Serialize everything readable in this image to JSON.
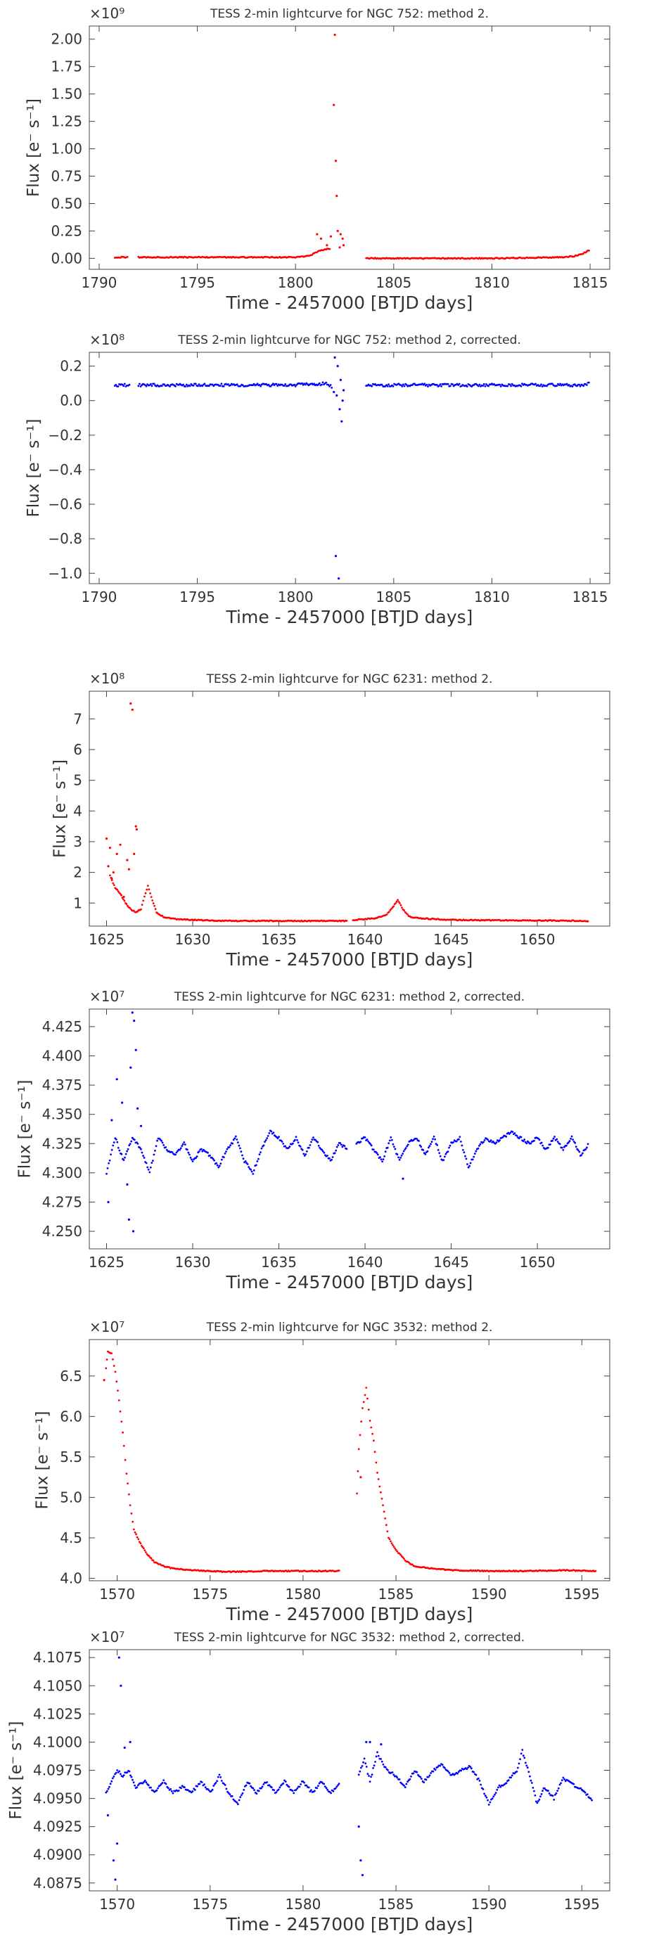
{
  "colors": {
    "red": "#ff0000",
    "blue": "#0000ff",
    "axis": "#444444"
  },
  "chart_data": [
    {
      "type": "scatter",
      "title": "TESS 2-min lightcurve for NGC 752: method 2.",
      "xlabel": "Time - 2457000 [BTJD days]",
      "ylabel": "Flux [e⁻ s⁻¹]",
      "offset_label": "×10⁹",
      "color": "#ff0000",
      "xlim": [
        1789.5,
        1816.0
      ],
      "ylim": [
        -0.1,
        2.12
      ],
      "xticks": [
        1790,
        1795,
        1800,
        1805,
        1810,
        1815
      ],
      "xticklabels": [
        "1790",
        "1795",
        "1800",
        "1805",
        "1810",
        "1815"
      ],
      "yticks": [
        0.0,
        0.25,
        0.5,
        0.75,
        1.0,
        1.25,
        1.5,
        1.75,
        2.0
      ],
      "yticklabels": [
        "0.00",
        "0.25",
        "0.50",
        "0.75",
        "1.00",
        "1.25",
        "1.50",
        "1.75",
        "2.00"
      ],
      "grid": false,
      "segments": [
        {
          "x": [
            1790.8,
            1791.2,
            1791.5
          ],
          "y": [
            0.01,
            0.01,
            0.01
          ]
        },
        {
          "x": [
            1792.0,
            1796.0,
            1800.0,
            1800.6,
            1800.9,
            1801.2,
            1801.5,
            1801.8
          ],
          "y": [
            0.01,
            0.01,
            0.01,
            0.02,
            0.04,
            0.07,
            0.08,
            0.09
          ]
        },
        {
          "x": [
            1803.6,
            1806.0,
            1810.0,
            1813.5,
            1814.2,
            1814.6,
            1815.0
          ],
          "y": [
            0.0,
            0.0,
            0.0,
            0.01,
            0.02,
            0.04,
            0.08
          ]
        }
      ],
      "points": {
        "x": [
          1801.1,
          1801.3,
          1801.6,
          1801.8,
          1801.95,
          1802.0,
          1802.05,
          1802.1,
          1802.15,
          1802.25,
          1802.3,
          1802.4,
          1802.45
        ],
        "y": [
          0.22,
          0.18,
          0.12,
          0.2,
          1.4,
          2.04,
          0.89,
          0.57,
          0.25,
          0.1,
          0.22,
          0.18,
          0.12
        ]
      }
    },
    {
      "type": "scatter",
      "title": "TESS 2-min lightcurve for NGC 752: method 2, corrected.",
      "xlabel": "Time - 2457000 [BTJD days]",
      "ylabel": "Flux [e⁻ s⁻¹]",
      "offset_label": "×10⁸",
      "color": "#0000ff",
      "xlim": [
        1789.5,
        1816.0
      ],
      "ylim": [
        -1.06,
        0.28
      ],
      "xticks": [
        1790,
        1795,
        1800,
        1805,
        1810,
        1815
      ],
      "xticklabels": [
        "1790",
        "1795",
        "1800",
        "1805",
        "1810",
        "1815"
      ],
      "yticks": [
        -1.0,
        -0.8,
        -0.6,
        -0.4,
        -0.2,
        0.0,
        0.2
      ],
      "yticklabels": [
        "−1.0",
        "−0.8",
        "−0.6",
        "−0.4",
        "−0.2",
        "0.0",
        "0.2"
      ],
      "grid": false,
      "segments": [
        {
          "x": [
            1790.8,
            1791.3,
            1791.6
          ],
          "y": [
            0.09,
            0.09,
            0.09
          ]
        },
        {
          "x": [
            1792.0,
            1796.0,
            1800.0,
            1800.5,
            1801.0,
            1801.5,
            1801.9
          ],
          "y": [
            0.09,
            0.09,
            0.09,
            0.1,
            0.09,
            0.1,
            0.08
          ]
        },
        {
          "x": [
            1803.6,
            1808.0,
            1812.0,
            1814.5,
            1815.0
          ],
          "y": [
            0.09,
            0.09,
            0.09,
            0.09,
            0.1
          ]
        }
      ],
      "points": {
        "x": [
          1801.95,
          1802.0,
          1802.05,
          1802.1,
          1802.15,
          1802.2,
          1802.25,
          1802.3,
          1802.35,
          1802.4,
          1802.45
        ],
        "y": [
          0.05,
          0.25,
          -0.9,
          0.03,
          0.2,
          -1.03,
          -0.05,
          0.12,
          -0.12,
          0.0,
          0.06
        ]
      }
    },
    {
      "type": "scatter",
      "title": "TESS 2-min lightcurve for NGC 6231: method 2.",
      "xlabel": "Time - 2457000 [BTJD days]",
      "ylabel": "Flux [e⁻ s⁻¹]",
      "offset_label": "×10⁸",
      "color": "#ff0000",
      "xlim": [
        1624.0,
        1654.2
      ],
      "ylim": [
        0.25,
        7.9
      ],
      "xticks": [
        1625,
        1630,
        1635,
        1640,
        1645,
        1650
      ],
      "xticklabels": [
        "1625",
        "1630",
        "1635",
        "1640",
        "1645",
        "1650"
      ],
      "yticks": [
        1,
        2,
        3,
        4,
        5,
        6,
        7
      ],
      "yticklabels": [
        "1",
        "2",
        "3",
        "4",
        "5",
        "6",
        "7"
      ],
      "grid": false,
      "segments": [
        {
          "x": [
            1625.2,
            1625.5,
            1625.8,
            1626.1,
            1626.4,
            1626.7,
            1627.0,
            1627.2,
            1627.4,
            1627.6,
            1627.9,
            1628.3,
            1629.0,
            1630.0,
            1632.0,
            1635.0,
            1639.0
          ],
          "y": [
            1.9,
            1.5,
            1.3,
            1.0,
            0.8,
            0.7,
            0.8,
            1.2,
            1.55,
            1.2,
            0.7,
            0.55,
            0.48,
            0.45,
            0.42,
            0.42,
            0.42
          ]
        },
        {
          "x": [
            1639.3,
            1640.5,
            1641.2,
            1641.6,
            1641.9,
            1642.2,
            1642.6,
            1643.3,
            1645.0,
            1648.0,
            1653.0
          ],
          "y": [
            0.45,
            0.5,
            0.6,
            0.85,
            1.1,
            0.8,
            0.55,
            0.5,
            0.45,
            0.44,
            0.42
          ]
        }
      ],
      "points": {
        "x": [
          1625.0,
          1625.1,
          1625.2,
          1625.3,
          1625.4,
          1625.6,
          1625.8,
          1626.0,
          1626.2,
          1626.3,
          1626.4,
          1626.5,
          1626.6,
          1626.7,
          1626.75
        ],
        "y": [
          3.1,
          2.2,
          2.8,
          1.8,
          2.0,
          2.6,
          2.9,
          1.2,
          2.4,
          2.1,
          7.5,
          7.3,
          2.6,
          3.5,
          3.4
        ]
      }
    },
    {
      "type": "scatter",
      "title": "TESS 2-min lightcurve for NGC 6231: method 2, corrected.",
      "xlabel": "Time - 2457000 [BTJD days]",
      "ylabel": "Flux [e⁻ s⁻¹]",
      "offset_label": "×10⁷",
      "color": "#0000ff",
      "xlim": [
        1624.0,
        1654.2
      ],
      "ylim": [
        4.235,
        4.44
      ],
      "xticks": [
        1625,
        1630,
        1635,
        1640,
        1645,
        1650
      ],
      "xticklabels": [
        "1625",
        "1630",
        "1635",
        "1640",
        "1645",
        "1650"
      ],
      "yticks": [
        4.25,
        4.275,
        4.3,
        4.325,
        4.35,
        4.375,
        4.4,
        4.425
      ],
      "yticklabels": [
        "4.250",
        "4.275",
        "4.300",
        "4.325",
        "4.350",
        "4.375",
        "4.400",
        "4.425"
      ],
      "grid": false,
      "segments": [
        {
          "x": [
            1625.0,
            1625.5,
            1626.0,
            1626.5,
            1627.0,
            1627.5,
            1628.0,
            1628.5,
            1629.0,
            1629.5,
            1630.0,
            1630.5,
            1631.0,
            1631.5,
            1632.0,
            1632.5,
            1633.0,
            1633.5,
            1634.0,
            1634.5,
            1635.0,
            1635.5,
            1636.0,
            1636.5,
            1637.0,
            1637.5,
            1638.0,
            1638.5,
            1639.0
          ],
          "y": [
            4.3,
            4.33,
            4.31,
            4.33,
            4.32,
            4.3,
            4.33,
            4.32,
            4.315,
            4.325,
            4.31,
            4.32,
            4.315,
            4.305,
            4.32,
            4.33,
            4.31,
            4.3,
            4.32,
            4.335,
            4.33,
            4.32,
            4.33,
            4.315,
            4.33,
            4.32,
            4.31,
            4.325,
            4.32
          ]
        },
        {
          "x": [
            1639.5,
            1640.0,
            1640.5,
            1641.0,
            1641.5,
            1642.0,
            1642.5,
            1643.0,
            1643.5,
            1644.0,
            1644.5,
            1645.0,
            1645.5,
            1646.0,
            1646.5,
            1647.0,
            1647.5,
            1648.0,
            1648.5,
            1649.0,
            1649.5,
            1650.0,
            1650.5,
            1651.0,
            1651.5,
            1652.0,
            1652.5,
            1653.0
          ],
          "y": [
            4.325,
            4.33,
            4.32,
            4.31,
            4.33,
            4.31,
            4.325,
            4.33,
            4.315,
            4.33,
            4.31,
            4.325,
            4.33,
            4.305,
            4.32,
            4.33,
            4.325,
            4.33,
            4.335,
            4.33,
            4.325,
            4.33,
            4.32,
            4.33,
            4.32,
            4.33,
            4.315,
            4.325
          ]
        }
      ],
      "points": {
        "x": [
          1625.1,
          1625.3,
          1625.6,
          1625.9,
          1626.2,
          1626.4,
          1626.5,
          1626.6,
          1626.7,
          1626.8,
          1627.0,
          1626.3,
          1626.55,
          1642.2
        ],
        "y": [
          4.275,
          4.345,
          4.38,
          4.36,
          4.29,
          4.39,
          4.437,
          4.43,
          4.405,
          4.355,
          4.34,
          4.26,
          4.25,
          4.295
        ]
      }
    },
    {
      "type": "scatter",
      "title": "TESS 2-min lightcurve for NGC 3532: method 2.",
      "xlabel": "Time - 2457000 [BTJD days]",
      "ylabel": "Flux [e⁻ s⁻¹]",
      "offset_label": "×10⁷",
      "color": "#ff0000",
      "xlim": [
        1568.5,
        1596.5
      ],
      "ylim": [
        3.97,
        6.95
      ],
      "xticks": [
        1570,
        1575,
        1580,
        1585,
        1590,
        1595
      ],
      "xticklabels": [
        "1570",
        "1575",
        "1580",
        "1585",
        "1590",
        "1595"
      ],
      "yticks": [
        4.0,
        4.5,
        5.0,
        5.5,
        6.0,
        6.5
      ],
      "yticklabels": [
        "4.0",
        "4.5",
        "5.0",
        "5.5",
        "6.0",
        "6.5"
      ],
      "grid": false,
      "segments": [
        {
          "x": [
            1569.4,
            1569.5,
            1569.7,
            1569.9,
            1570.1,
            1570.3,
            1570.5,
            1570.7,
            1570.9,
            1571.2,
            1571.6,
            1572.0,
            1572.5,
            1573.0,
            1574.0,
            1575.0,
            1576.0,
            1578.0,
            1580.0,
            1582.0
          ],
          "y": [
            6.6,
            6.8,
            6.78,
            6.55,
            6.2,
            5.8,
            5.3,
            4.9,
            4.6,
            4.45,
            4.3,
            4.2,
            4.15,
            4.12,
            4.1,
            4.09,
            4.08,
            4.09,
            4.09,
            4.09
          ]
        },
        {
          "x": [
            1582.9,
            1583.0,
            1583.2,
            1583.4,
            1583.6,
            1583.8,
            1584.0,
            1584.3,
            1584.6,
            1585.0,
            1585.5,
            1586.0,
            1587.0,
            1588.0,
            1590.0,
            1592.0,
            1594.0,
            1595.8
          ],
          "y": [
            5.05,
            5.6,
            6.1,
            6.35,
            5.95,
            5.7,
            5.3,
            4.9,
            4.5,
            4.35,
            4.22,
            4.15,
            4.12,
            4.1,
            4.09,
            4.09,
            4.1,
            4.09
          ]
        }
      ],
      "points": {
        "x": [
          1569.3,
          1583.1
        ],
        "y": [
          6.45,
          5.25
        ]
      }
    },
    {
      "type": "scatter",
      "title": "TESS 2-min lightcurve for NGC 3532: method 2, corrected.",
      "xlabel": "Time - 2457000 [BTJD days]",
      "ylabel": "Flux [e⁻ s⁻¹]",
      "offset_label": "×10⁷",
      "color": "#0000ff",
      "xlim": [
        1568.5,
        1596.5
      ],
      "ylim": [
        4.0868,
        4.1082
      ],
      "xticks": [
        1570,
        1575,
        1580,
        1585,
        1590,
        1595
      ],
      "xticklabels": [
        "1570",
        "1575",
        "1580",
        "1585",
        "1590",
        "1595"
      ],
      "yticks": [
        4.0875,
        4.09,
        4.0925,
        4.095,
        4.0975,
        4.1,
        4.1025,
        4.105,
        4.1075
      ],
      "yticklabels": [
        "4.0875",
        "4.0900",
        "4.0925",
        "4.0950",
        "4.0975",
        "4.1000",
        "4.1025",
        "4.1050",
        "4.1075"
      ],
      "grid": false,
      "segments": [
        {
          "x": [
            1569.4,
            1569.7,
            1570.0,
            1570.3,
            1570.6,
            1571.0,
            1571.5,
            1572.0,
            1572.5,
            1573.0,
            1573.5,
            1574.0,
            1574.5,
            1575.0,
            1575.5,
            1576.0,
            1576.5,
            1577.0,
            1577.5,
            1578.0,
            1578.5,
            1579.0,
            1579.5,
            1580.0,
            1580.5,
            1581.0,
            1581.5,
            1582.0
          ],
          "y": [
            4.0955,
            4.0965,
            4.0975,
            4.097,
            4.0975,
            4.096,
            4.0965,
            4.0955,
            4.0965,
            4.0955,
            4.096,
            4.0955,
            4.0965,
            4.0955,
            4.097,
            4.0955,
            4.0945,
            4.0965,
            4.0955,
            4.0965,
            4.0955,
            4.0965,
            4.0955,
            4.0965,
            4.0955,
            4.0965,
            4.0955,
            4.0965
          ]
        },
        {
          "x": [
            1583.0,
            1583.3,
            1583.6,
            1584.0,
            1584.5,
            1585.0,
            1585.5,
            1586.0,
            1586.5,
            1587.0,
            1587.5,
            1588.0,
            1588.5,
            1589.0,
            1589.5,
            1590.0,
            1590.5,
            1591.0,
            1591.5,
            1591.8,
            1592.2,
            1592.6,
            1593.0,
            1593.5,
            1594.0,
            1594.5,
            1595.0,
            1595.6
          ],
          "y": [
            4.097,
            4.0985,
            4.0965,
            4.099,
            4.0975,
            4.097,
            4.096,
            4.0975,
            4.0965,
            4.0975,
            4.098,
            4.097,
            4.0975,
            4.0978,
            4.0965,
            4.0945,
            4.096,
            4.0965,
            4.0975,
            4.0992,
            4.097,
            4.0945,
            4.096,
            4.095,
            4.0968,
            4.0962,
            4.0958,
            4.0948
          ]
        }
      ],
      "points": {
        "x": [
          1569.5,
          1569.8,
          1569.9,
          1570.0,
          1570.1,
          1570.2,
          1570.4,
          1570.7,
          1583.0,
          1583.1,
          1583.2,
          1583.4,
          1583.6,
          1584.2
        ],
        "y": [
          4.0935,
          4.0895,
          4.0878,
          4.091,
          4.1075,
          4.105,
          4.0995,
          4.1,
          4.0925,
          4.0895,
          4.0882,
          4.1,
          4.1,
          4.0998
        ]
      }
    }
  ]
}
